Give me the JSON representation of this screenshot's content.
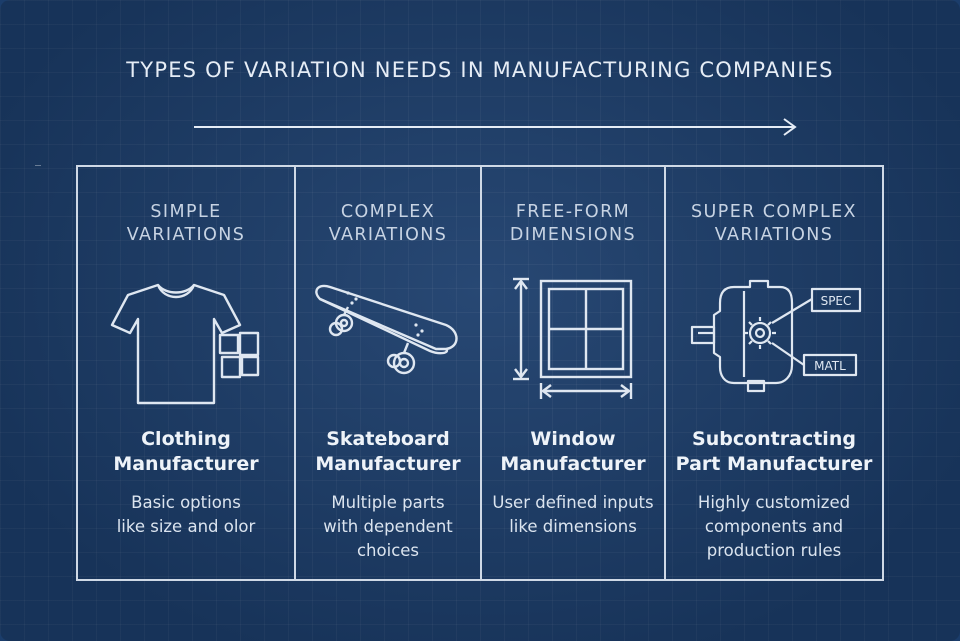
{
  "title": "TYPES OF VARIATION NEEDS IN MANUFACTURING COMPANIES",
  "columns": [
    {
      "heading": "SIMPLE\nVARIATIONS",
      "icon": "t-shirt-icon",
      "manufacturer": "Clothing\nManufacturer",
      "description": "Basic options\nlike size and olor"
    },
    {
      "heading": "COMPLEX\nVARIATIONS",
      "icon": "skateboard-icon",
      "manufacturer": "Skateboard\nManufacturer",
      "description": "Multiple parts\nwith dependent\nchoices"
    },
    {
      "heading": "FREE-FORM\nDIMENSIONS",
      "icon": "window-icon",
      "manufacturer": "Window\nManufacturer",
      "description": "User defined inputs\nlike dimensions"
    },
    {
      "heading": "SUPER COMPLEX\nVARIATIONS",
      "icon": "machined-part-icon",
      "manufacturer": "Subcontracting\nPart Manufacturer",
      "description": "Highly customized\ncomponents and\nproduction rules",
      "labels": {
        "spec": "SPEC",
        "matl": "MATL"
      }
    }
  ],
  "colors": {
    "background": "#1c3e6c",
    "line": "#cfd9e6",
    "text": "#eef3f9"
  }
}
